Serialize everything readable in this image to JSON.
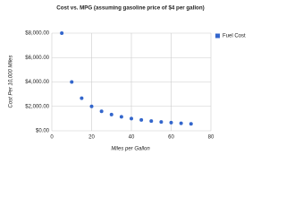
{
  "chart_data": {
    "type": "scatter",
    "title": "Cost vs. MPG (assuming gasoline price of $4 per gallon)",
    "x_label": "Miles per Gallon",
    "y_label": "Cost Per 10,000 Miles",
    "legend_position": "right",
    "grid": true,
    "series": [
      {
        "name": "Fuel Cost",
        "color": "#3366cc",
        "x": [
          5,
          10,
          15,
          20,
          25,
          30,
          35,
          40,
          45,
          50,
          55,
          60,
          65,
          70
        ],
        "values": [
          8000,
          4000,
          2667,
          2000,
          1600,
          1333,
          1143,
          1000,
          889,
          800,
          727,
          667,
          615,
          571
        ]
      }
    ],
    "xlim": [
      0,
      80
    ],
    "xticks": [
      0,
      20,
      40,
      60,
      80
    ],
    "ylim": [
      0,
      8000
    ],
    "yticks": [
      {
        "value": 0,
        "label": "$0.00"
      },
      {
        "value": 2000,
        "label": "$2,000.00"
      },
      {
        "value": 4000,
        "label": "$4,000.00"
      },
      {
        "value": 6000,
        "label": "$6,000.00"
      },
      {
        "value": 8000,
        "label": "$8,000.00"
      }
    ]
  }
}
